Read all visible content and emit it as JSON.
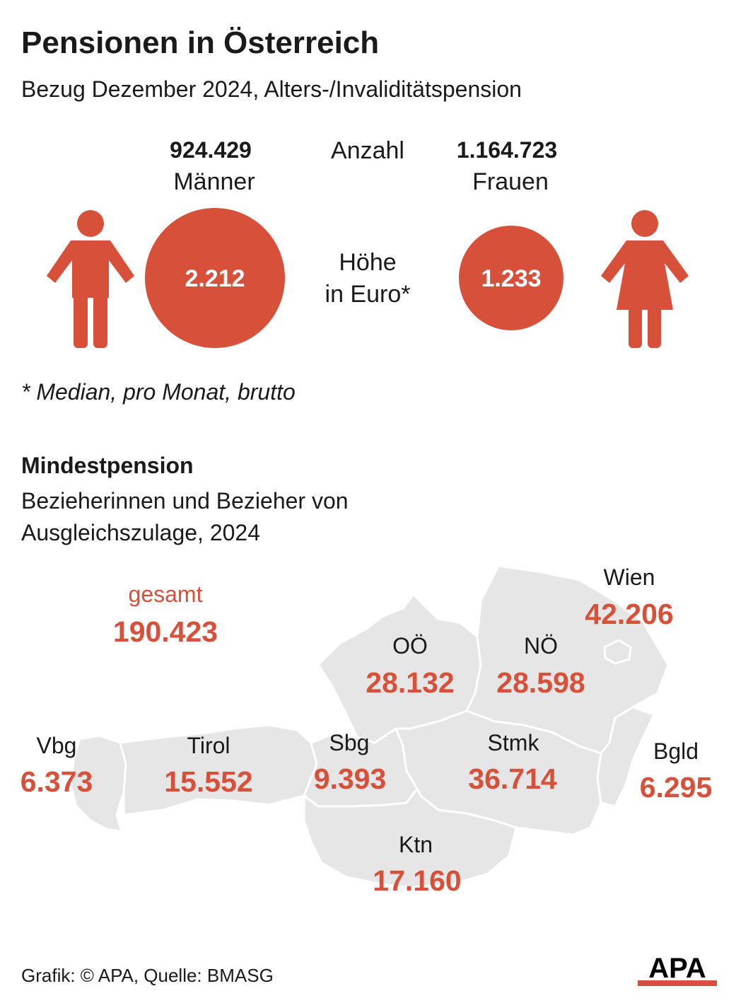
{
  "header": {
    "title": "Pensionen in Österreich",
    "subtitle": "Bezug Dezember 2024, Alters-/Invaliditätspension"
  },
  "comparison": {
    "count_label": "Anzahl",
    "amount_label_line1": "Höhe",
    "amount_label_line2": "in Euro*",
    "men": {
      "count": "924.429",
      "label": "Männer",
      "median_eur": "2.212",
      "icon": "man-icon"
    },
    "women": {
      "count": "1.164.723",
      "label": "Frauen",
      "median_eur": "1.233",
      "icon": "woman-icon"
    },
    "footnote": "* Median, pro Monat, brutto"
  },
  "min_pension": {
    "title": "Mindestpension",
    "subtitle": "Bezieherinnen und Bezieher von Ausgleichszulage, 2024",
    "total_label": "gesamt",
    "total_value": "190.423",
    "regions": [
      {
        "name": "Wien",
        "value": "42.206"
      },
      {
        "name": "OÖ",
        "value": "28.132"
      },
      {
        "name": "NÖ",
        "value": "28.598"
      },
      {
        "name": "Vbg",
        "value": "6.373"
      },
      {
        "name": "Tirol",
        "value": "15.552"
      },
      {
        "name": "Sbg",
        "value": "9.393"
      },
      {
        "name": "Stmk",
        "value": "36.714"
      },
      {
        "name": "Bgld",
        "value": "6.295"
      },
      {
        "name": "Ktn",
        "value": "17.160"
      }
    ]
  },
  "footer": {
    "credit": "Grafik: © APA, Quelle: BMASG",
    "logo": "APA"
  },
  "colors": {
    "accent": "#d7503a",
    "map_fill": "#e6e6e6",
    "map_border": "#ffffff",
    "text": "#1a1a1a"
  }
}
